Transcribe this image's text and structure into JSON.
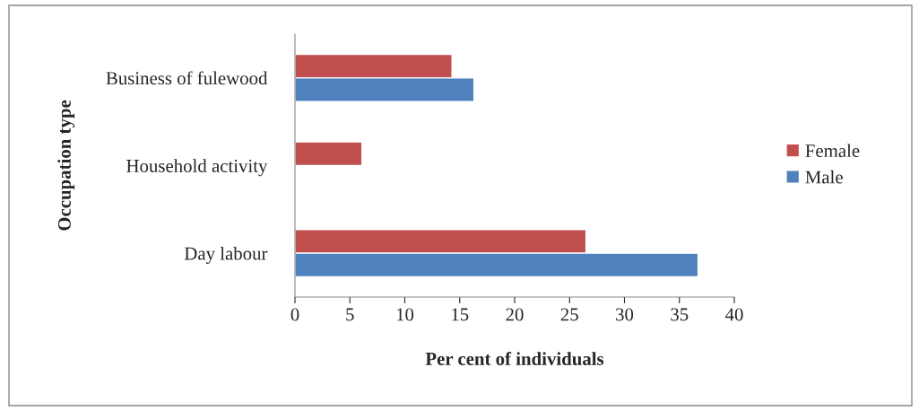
{
  "chart_data": {
    "type": "bar",
    "orientation": "horizontal",
    "xlabel": "Per cent of individuals",
    "ylabel": "Occupation type",
    "categories": [
      "Business of fulewood",
      "Household activity",
      "Day labour"
    ],
    "series": [
      {
        "name": "Female",
        "color": "#c0504d",
        "values": [
          14.3,
          6.1,
          26.5
        ]
      },
      {
        "name": "Male",
        "color": "#4f81bd",
        "values": [
          16.3,
          null,
          36.7
        ]
      }
    ],
    "xlim": [
      0,
      40
    ],
    "xticks": [
      0,
      5,
      10,
      15,
      20,
      25,
      30,
      35,
      40
    ],
    "grid": false,
    "legend": "right"
  }
}
